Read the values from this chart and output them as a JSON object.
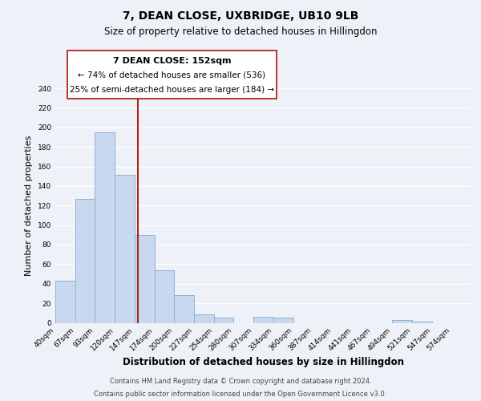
{
  "title": "7, DEAN CLOSE, UXBRIDGE, UB10 9LB",
  "subtitle": "Size of property relative to detached houses in Hillingdon",
  "xlabel": "Distribution of detached houses by size in Hillingdon",
  "ylabel": "Number of detached properties",
  "bin_labels": [
    "40sqm",
    "67sqm",
    "93sqm",
    "120sqm",
    "147sqm",
    "174sqm",
    "200sqm",
    "227sqm",
    "254sqm",
    "280sqm",
    "307sqm",
    "334sqm",
    "360sqm",
    "387sqm",
    "414sqm",
    "441sqm",
    "467sqm",
    "494sqm",
    "521sqm",
    "547sqm",
    "574sqm"
  ],
  "bar_heights": [
    43,
    127,
    195,
    151,
    90,
    54,
    28,
    9,
    5,
    0,
    6,
    5,
    0,
    0,
    0,
    0,
    0,
    3,
    1,
    0,
    0
  ],
  "bar_color": "#c8d8ee",
  "bar_edge_color": "#8eb0d8",
  "property_label": "7 DEAN CLOSE: 152sqm",
  "annotation_line1": "← 74% of detached houses are smaller (536)",
  "annotation_line2": "25% of semi-detached houses are larger (184) →",
  "vline_color": "#b22222",
  "ylim": [
    0,
    240
  ],
  "yticks": [
    0,
    20,
    40,
    60,
    80,
    100,
    120,
    140,
    160,
    180,
    200,
    220,
    240
  ],
  "footer_line1": "Contains HM Land Registry data © Crown copyright and database right 2024.",
  "footer_line2": "Contains public sector information licensed under the Open Government Licence v3.0.",
  "background_color": "#eef2f8",
  "grid_color": "#ffffff"
}
